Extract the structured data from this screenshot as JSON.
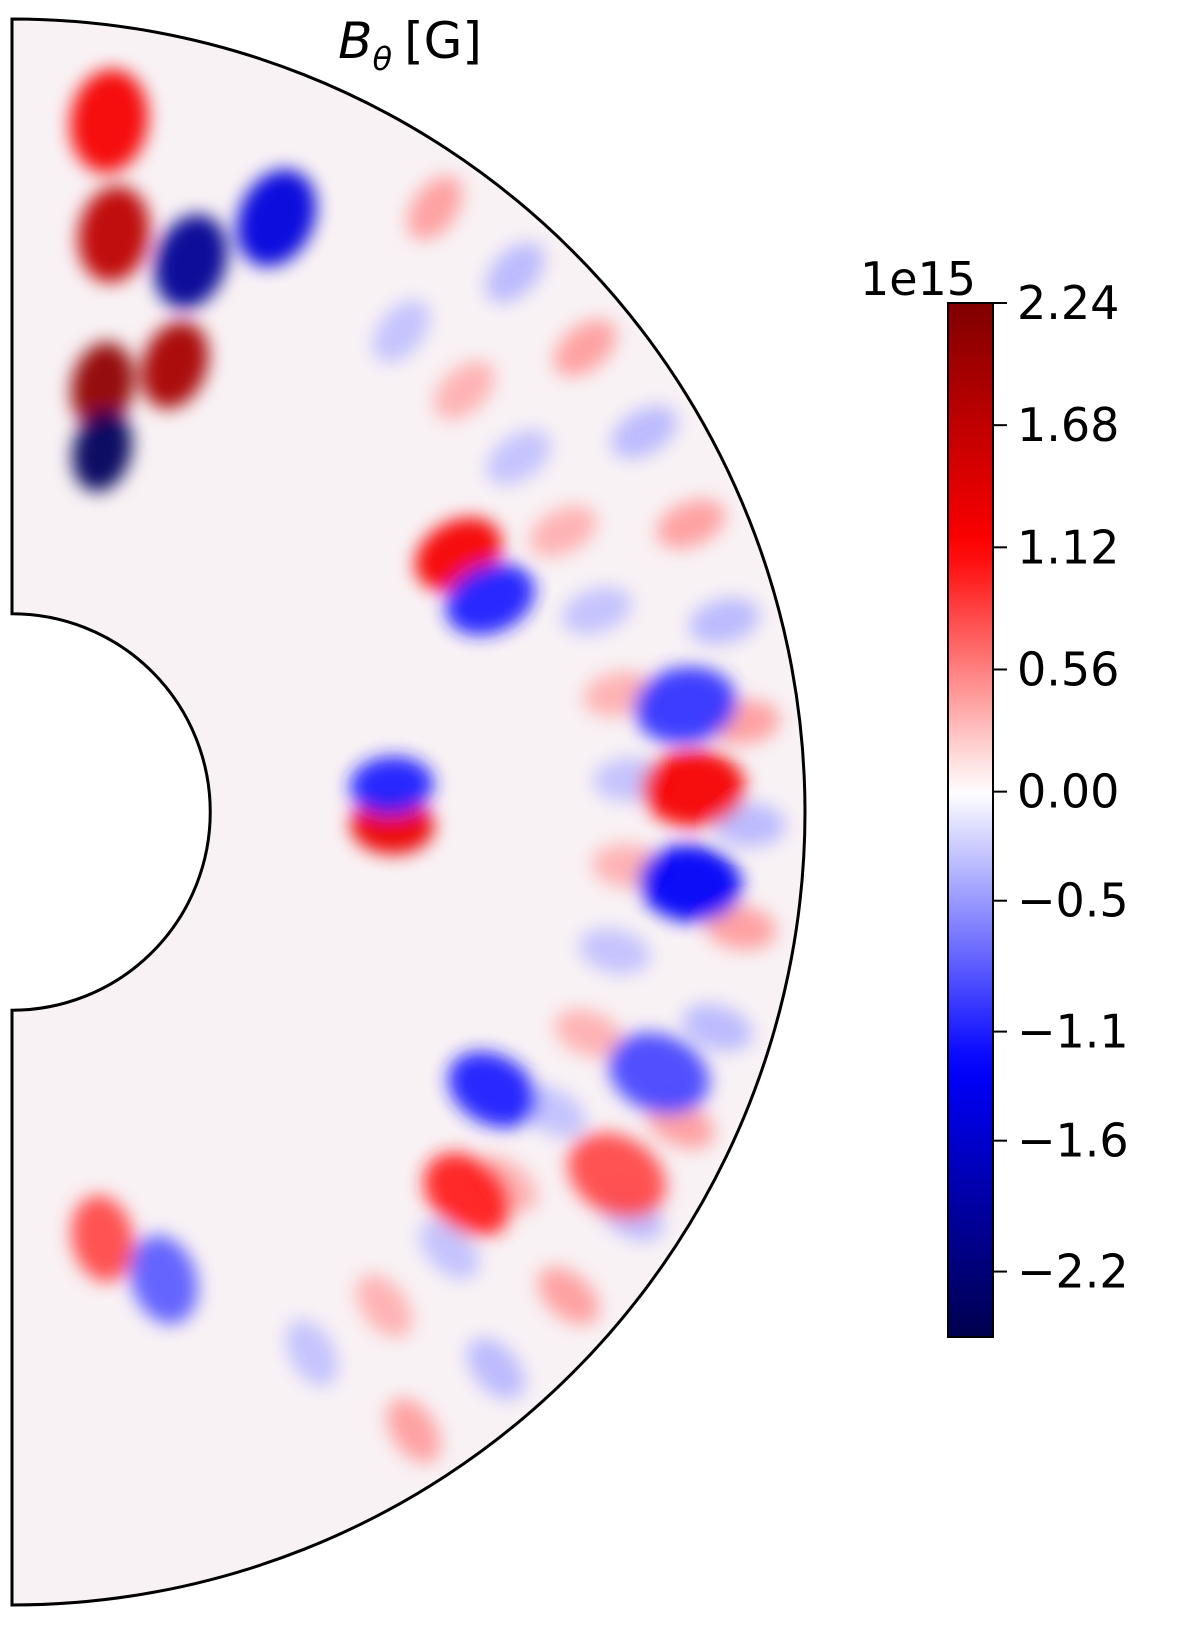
{
  "chart_data": {
    "type": "heatmap",
    "subtype": "polar-annulus-contour",
    "title": "B_θ [G]",
    "title_parts": {
      "base": "B",
      "subscript": "θ",
      "unit": "[G]"
    },
    "quantity": "B_theta",
    "units": "G",
    "domain": {
      "theta_range_deg": [
        0,
        180
      ],
      "inner_radius_fraction": 0.25,
      "outer_radius_fraction": 1.0,
      "view": "right half-annulus"
    },
    "colorbar": {
      "colormap": "seismic",
      "multiplier_label": "1e15",
      "vmin": -2.5,
      "vmax": 2.24,
      "ticks": [
        {
          "value": 2.24,
          "label": "2.24"
        },
        {
          "value": 1.68,
          "label": "1.68"
        },
        {
          "value": 1.12,
          "label": "1.12"
        },
        {
          "value": 0.56,
          "label": "0.56"
        },
        {
          "value": 0.0,
          "label": "0.00"
        },
        {
          "value": -0.5,
          "label": "−0.5"
        },
        {
          "value": -1.1,
          "label": "−1.1"
        },
        {
          "value": -1.6,
          "label": "−1.6"
        },
        {
          "value": -2.2,
          "label": "−2.2"
        }
      ],
      "levels": 40
    },
    "features": [
      {
        "region": "upper-pole, inner",
        "theta_deg": 12,
        "r_frac": 0.55,
        "value": 2.1,
        "sign": "positive"
      },
      {
        "region": "upper-pole, inner",
        "theta_deg": 14,
        "r_frac": 0.47,
        "value": -2.4,
        "sign": "negative"
      },
      {
        "region": "upper-pole",
        "theta_deg": 20,
        "r_frac": 0.6,
        "value": 1.9,
        "sign": "positive"
      },
      {
        "region": "upper-pole",
        "theta_deg": 18,
        "r_frac": 0.73,
        "value": -2.0,
        "sign": "negative"
      },
      {
        "region": "upper-pole",
        "theta_deg": 10,
        "r_frac": 0.74,
        "value": 1.7,
        "sign": "positive"
      },
      {
        "region": "upper-pole",
        "theta_deg": 24,
        "r_frac": 0.82,
        "value": -1.5,
        "sign": "negative"
      },
      {
        "region": "upper-pole",
        "theta_deg": 8,
        "r_frac": 0.88,
        "value": 1.2,
        "sign": "positive"
      },
      {
        "region": "equator",
        "theta_deg": 88,
        "r_frac": 0.86,
        "value": 1.2,
        "sign": "positive"
      },
      {
        "region": "equator",
        "theta_deg": 96,
        "r_frac": 0.86,
        "value": -1.3,
        "sign": "negative"
      },
      {
        "region": "equator",
        "theta_deg": 81,
        "r_frac": 0.86,
        "value": -1.0,
        "sign": "negative"
      },
      {
        "region": "mid-latitude",
        "theta_deg": 60,
        "r_frac": 0.65,
        "value": 1.2,
        "sign": "positive"
      },
      {
        "region": "mid-latitude",
        "theta_deg": 66,
        "r_frac": 0.66,
        "value": -1.1,
        "sign": "negative"
      },
      {
        "region": "inner",
        "theta_deg": 92,
        "r_frac": 0.48,
        "value": 1.3,
        "sign": "positive"
      },
      {
        "region": "inner",
        "theta_deg": 86,
        "r_frac": 0.48,
        "value": -1.1,
        "sign": "negative"
      },
      {
        "region": "lower",
        "theta_deg": 120,
        "r_frac": 0.7,
        "value": -1.1,
        "sign": "negative"
      },
      {
        "region": "lower",
        "theta_deg": 130,
        "r_frac": 0.75,
        "value": 1.0,
        "sign": "positive"
      },
      {
        "region": "lower",
        "theta_deg": 112,
        "r_frac": 0.88,
        "value": -0.9,
        "sign": "negative"
      },
      {
        "region": "lower",
        "theta_deg": 121,
        "r_frac": 0.89,
        "value": 0.8,
        "sign": "positive"
      },
      {
        "region": "lower-pole",
        "theta_deg": 168,
        "r_frac": 0.55,
        "value": 0.8,
        "sign": "positive"
      },
      {
        "region": "lower-pole",
        "theta_deg": 162,
        "r_frac": 0.62,
        "value": -0.8,
        "sign": "negative"
      }
    ]
  }
}
